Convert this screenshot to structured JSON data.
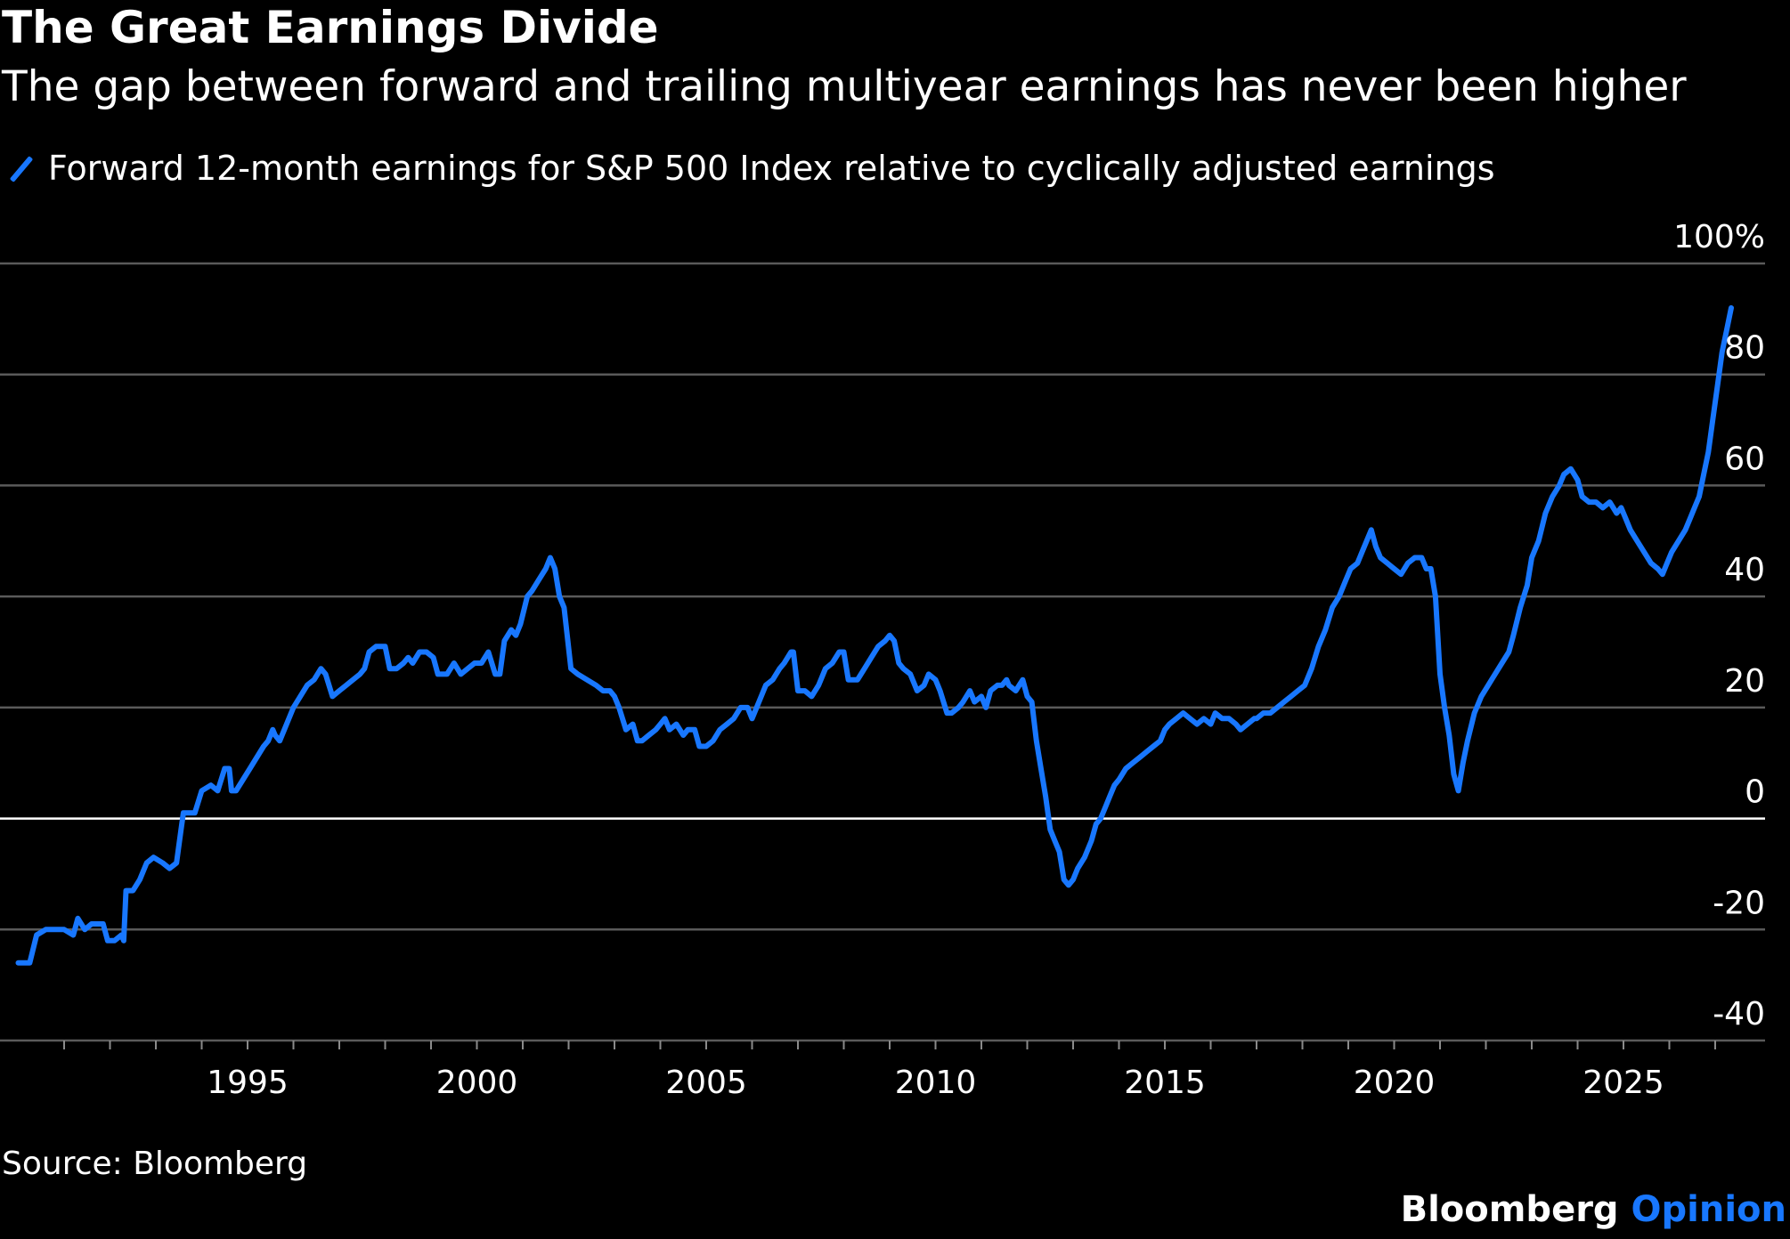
{
  "chart_data": {
    "type": "line",
    "title": "The Great Earnings Divide",
    "subtitle": "The gap between forward and trailing multiyear earnings has never been higher",
    "series": [
      {
        "name": "Forward 12-month earnings for S&P 500 Index relative to cyclically adjusted earnings",
        "color": "#1877ff",
        "points": [
          [
            1990.0,
            -26
          ],
          [
            1990.25,
            -26
          ],
          [
            1990.4,
            -21
          ],
          [
            1990.6,
            -20
          ],
          [
            1990.8,
            -20
          ],
          [
            1991.0,
            -20
          ],
          [
            1991.2,
            -21
          ],
          [
            1991.3,
            -18
          ],
          [
            1991.45,
            -20
          ],
          [
            1991.6,
            -19
          ],
          [
            1991.85,
            -19
          ],
          [
            1991.95,
            -22
          ],
          [
            1992.1,
            -22
          ],
          [
            1992.25,
            -21
          ],
          [
            1992.3,
            -22
          ],
          [
            1992.35,
            -13
          ],
          [
            1992.5,
            -13
          ],
          [
            1992.65,
            -11
          ],
          [
            1992.8,
            -8
          ],
          [
            1992.95,
            -7
          ],
          [
            1993.15,
            -8
          ],
          [
            1993.3,
            -9
          ],
          [
            1993.45,
            -8
          ],
          [
            1993.55,
            -2
          ],
          [
            1993.6,
            1
          ],
          [
            1993.75,
            1
          ],
          [
            1993.85,
            1
          ],
          [
            1994.0,
            5
          ],
          [
            1994.2,
            6
          ],
          [
            1994.35,
            5
          ],
          [
            1994.5,
            9
          ],
          [
            1994.6,
            9
          ],
          [
            1994.65,
            5
          ],
          [
            1994.75,
            5
          ],
          [
            1994.9,
            7
          ],
          [
            1995.05,
            9
          ],
          [
            1995.2,
            11
          ],
          [
            1995.35,
            13
          ],
          [
            1995.45,
            14
          ],
          [
            1995.55,
            16
          ],
          [
            1995.6,
            15
          ],
          [
            1995.7,
            14
          ],
          [
            1995.85,
            17
          ],
          [
            1996.0,
            20
          ],
          [
            1996.15,
            22
          ],
          [
            1996.3,
            24
          ],
          [
            1996.45,
            25
          ],
          [
            1996.6,
            27
          ],
          [
            1996.7,
            26
          ],
          [
            1996.85,
            22
          ],
          [
            1997.0,
            23
          ],
          [
            1997.15,
            24
          ],
          [
            1997.3,
            25
          ],
          [
            1997.45,
            26
          ],
          [
            1997.55,
            27
          ],
          [
            1997.65,
            30
          ],
          [
            1997.8,
            31
          ],
          [
            1998.0,
            31
          ],
          [
            1998.1,
            27
          ],
          [
            1998.25,
            27
          ],
          [
            1998.4,
            28
          ],
          [
            1998.5,
            29
          ],
          [
            1998.6,
            28
          ],
          [
            1998.75,
            30
          ],
          [
            1998.9,
            30
          ],
          [
            1999.05,
            29
          ],
          [
            1999.15,
            26
          ],
          [
            1999.35,
            26
          ],
          [
            1999.5,
            28
          ],
          [
            1999.65,
            26
          ],
          [
            1999.8,
            27
          ],
          [
            1999.95,
            28
          ],
          [
            2000.1,
            28
          ],
          [
            2000.25,
            30
          ],
          [
            2000.4,
            26
          ],
          [
            2000.5,
            26
          ],
          [
            2000.6,
            32
          ],
          [
            2000.75,
            34
          ],
          [
            2000.85,
            33
          ],
          [
            2000.95,
            35
          ],
          [
            2001.1,
            40
          ],
          [
            2001.2,
            41
          ],
          [
            2001.35,
            43
          ],
          [
            2001.5,
            45
          ],
          [
            2001.6,
            47
          ],
          [
            2001.7,
            45
          ],
          [
            2001.8,
            40
          ],
          [
            2001.9,
            38
          ],
          [
            2002.05,
            27
          ],
          [
            2002.2,
            26
          ],
          [
            2002.4,
            25
          ],
          [
            2002.6,
            24
          ],
          [
            2002.75,
            23
          ],
          [
            2002.9,
            23
          ],
          [
            2003.0,
            22
          ],
          [
            2003.1,
            20
          ],
          [
            2003.25,
            16
          ],
          [
            2003.4,
            17
          ],
          [
            2003.5,
            14
          ],
          [
            2003.6,
            14
          ],
          [
            2003.75,
            15
          ],
          [
            2003.9,
            16
          ],
          [
            2004.0,
            17
          ],
          [
            2004.1,
            18
          ],
          [
            2004.2,
            16
          ],
          [
            2004.35,
            17
          ],
          [
            2004.5,
            15
          ],
          [
            2004.6,
            16
          ],
          [
            2004.75,
            16
          ],
          [
            2004.85,
            13
          ],
          [
            2005.0,
            13
          ],
          [
            2005.15,
            14
          ],
          [
            2005.3,
            16
          ],
          [
            2005.45,
            17
          ],
          [
            2005.6,
            18
          ],
          [
            2005.75,
            20
          ],
          [
            2005.9,
            20
          ],
          [
            2006.0,
            18
          ],
          [
            2006.15,
            21
          ],
          [
            2006.3,
            24
          ],
          [
            2006.45,
            25
          ],
          [
            2006.6,
            27
          ],
          [
            2006.7,
            28
          ],
          [
            2006.85,
            30
          ],
          [
            2006.9,
            30
          ],
          [
            2007.0,
            23
          ],
          [
            2007.15,
            23
          ],
          [
            2007.3,
            22
          ],
          [
            2007.45,
            24
          ],
          [
            2007.6,
            27
          ],
          [
            2007.75,
            28
          ],
          [
            2007.9,
            30
          ],
          [
            2008.0,
            30
          ],
          [
            2008.1,
            25
          ],
          [
            2008.3,
            25
          ],
          [
            2008.45,
            27
          ],
          [
            2008.6,
            29
          ],
          [
            2008.75,
            31
          ],
          [
            2008.9,
            32
          ],
          [
            2009.0,
            33
          ],
          [
            2009.1,
            32
          ],
          [
            2009.2,
            28
          ],
          [
            2009.3,
            27
          ],
          [
            2009.45,
            26
          ],
          [
            2009.6,
            23
          ],
          [
            2009.75,
            24
          ],
          [
            2009.85,
            26
          ],
          [
            2010.0,
            25
          ],
          [
            2010.1,
            23
          ],
          [
            2010.25,
            19
          ],
          [
            2010.35,
            19
          ],
          [
            2010.5,
            20
          ],
          [
            2010.6,
            21
          ],
          [
            2010.75,
            23
          ],
          [
            2010.85,
            21
          ],
          [
            2011.0,
            22
          ],
          [
            2011.1,
            20
          ],
          [
            2011.2,
            23
          ],
          [
            2011.35,
            24
          ],
          [
            2011.45,
            24
          ],
          [
            2011.55,
            25
          ],
          [
            2011.6,
            24
          ],
          [
            2011.75,
            23
          ],
          [
            2011.9,
            25
          ],
          [
            2012.0,
            22
          ],
          [
            2012.1,
            21
          ],
          [
            2012.2,
            14
          ],
          [
            2012.3,
            9
          ],
          [
            2012.4,
            4
          ],
          [
            2012.5,
            -2
          ],
          [
            2012.6,
            -4
          ],
          [
            2012.7,
            -6
          ],
          [
            2012.8,
            -11
          ],
          [
            2012.9,
            -12
          ],
          [
            2013.0,
            -11
          ],
          [
            2013.1,
            -9
          ],
          [
            2013.25,
            -7
          ],
          [
            2013.4,
            -4
          ],
          [
            2013.5,
            -1
          ],
          [
            2013.6,
            0
          ],
          [
            2013.7,
            2
          ],
          [
            2013.8,
            4
          ],
          [
            2013.9,
            6
          ],
          [
            2014.0,
            7
          ],
          [
            2014.15,
            9
          ],
          [
            2014.3,
            10
          ],
          [
            2014.45,
            11
          ],
          [
            2014.6,
            12
          ],
          [
            2014.75,
            13
          ],
          [
            2014.9,
            14
          ],
          [
            2015.0,
            16
          ],
          [
            2015.1,
            17
          ],
          [
            2015.25,
            18
          ],
          [
            2015.4,
            19
          ],
          [
            2015.55,
            18
          ],
          [
            2015.7,
            17
          ],
          [
            2015.85,
            18
          ],
          [
            2016.0,
            17
          ],
          [
            2016.1,
            19
          ],
          [
            2016.25,
            18
          ],
          [
            2016.4,
            18
          ],
          [
            2016.55,
            17
          ],
          [
            2016.65,
            16
          ],
          [
            2016.8,
            17
          ],
          [
            2016.95,
            18
          ],
          [
            2017.0,
            18
          ],
          [
            2017.15,
            19
          ],
          [
            2017.3,
            19
          ],
          [
            2017.45,
            20
          ],
          [
            2017.6,
            21
          ],
          [
            2017.75,
            22
          ],
          [
            2017.9,
            23
          ],
          [
            2018.05,
            24
          ],
          [
            2018.2,
            27
          ],
          [
            2018.35,
            31
          ],
          [
            2018.5,
            34
          ],
          [
            2018.65,
            38
          ],
          [
            2018.8,
            40
          ],
          [
            2018.95,
            43
          ],
          [
            2019.05,
            45
          ],
          [
            2019.2,
            46
          ],
          [
            2019.3,
            48
          ],
          [
            2019.4,
            50
          ],
          [
            2019.5,
            52
          ],
          [
            2019.6,
            49
          ],
          [
            2019.7,
            47
          ],
          [
            2019.85,
            46
          ],
          [
            2020.0,
            45
          ],
          [
            2020.15,
            44
          ],
          [
            2020.3,
            46
          ],
          [
            2020.45,
            47
          ],
          [
            2020.6,
            47
          ],
          [
            2020.7,
            45
          ],
          [
            2020.8,
            45
          ],
          [
            2020.9,
            40
          ],
          [
            2021.0,
            26
          ],
          [
            2021.1,
            20
          ],
          [
            2021.2,
            15
          ],
          [
            2021.3,
            8
          ],
          [
            2021.4,
            5
          ],
          [
            2021.5,
            10
          ],
          [
            2021.6,
            14
          ],
          [
            2021.75,
            19
          ],
          [
            2021.9,
            22
          ],
          [
            2022.05,
            24
          ],
          [
            2022.2,
            26
          ],
          [
            2022.35,
            28
          ],
          [
            2022.5,
            30
          ],
          [
            2022.6,
            33
          ],
          [
            2022.75,
            38
          ],
          [
            2022.9,
            42
          ],
          [
            2023.0,
            47
          ],
          [
            2023.15,
            50
          ],
          [
            2023.3,
            55
          ],
          [
            2023.45,
            58
          ],
          [
            2023.6,
            60
          ],
          [
            2023.7,
            62
          ],
          [
            2023.85,
            63
          ],
          [
            2024.0,
            61
          ],
          [
            2024.1,
            58
          ],
          [
            2024.25,
            57
          ],
          [
            2024.4,
            57
          ],
          [
            2024.55,
            56
          ],
          [
            2024.7,
            57
          ],
          [
            2024.85,
            55
          ],
          [
            2024.95,
            56
          ],
          [
            2025.05,
            54
          ],
          [
            2025.15,
            52
          ],
          [
            2025.3,
            50
          ],
          [
            2025.45,
            48
          ],
          [
            2025.6,
            46
          ],
          [
            2025.75,
            45
          ],
          [
            2025.85,
            44
          ],
          [
            2025.95,
            46
          ],
          [
            2026.05,
            48
          ],
          [
            2026.2,
            50
          ],
          [
            2026.35,
            52
          ],
          [
            2026.45,
            54
          ],
          [
            2026.55,
            56
          ],
          [
            2026.65,
            58
          ],
          [
            2026.75,
            62
          ],
          [
            2026.85,
            66
          ],
          [
            2026.95,
            72
          ],
          [
            2027.05,
            78
          ],
          [
            2027.15,
            84
          ],
          [
            2027.25,
            88
          ],
          [
            2027.35,
            92
          ]
        ]
      }
    ],
    "x_ticks_labeled": [
      "1995",
      "2000",
      "2005",
      "2010",
      "2015",
      "2020",
      "2025"
    ],
    "y_ticks": [
      "100%",
      "80",
      "60",
      "40",
      "20",
      "0",
      "-20",
      "-40"
    ],
    "ylim": [
      -40,
      100
    ],
    "xlim": [
      1990,
      2028
    ],
    "grid": "horizontal",
    "legend": "top-left"
  },
  "source": "Source: Bloomberg",
  "brand": {
    "name": "Bloomberg",
    "suffix": "Opinion"
  },
  "colors": {
    "background": "#000000",
    "line": "#1877ff",
    "grid": "#5a5a5a",
    "zero_line": "#ffffff"
  }
}
